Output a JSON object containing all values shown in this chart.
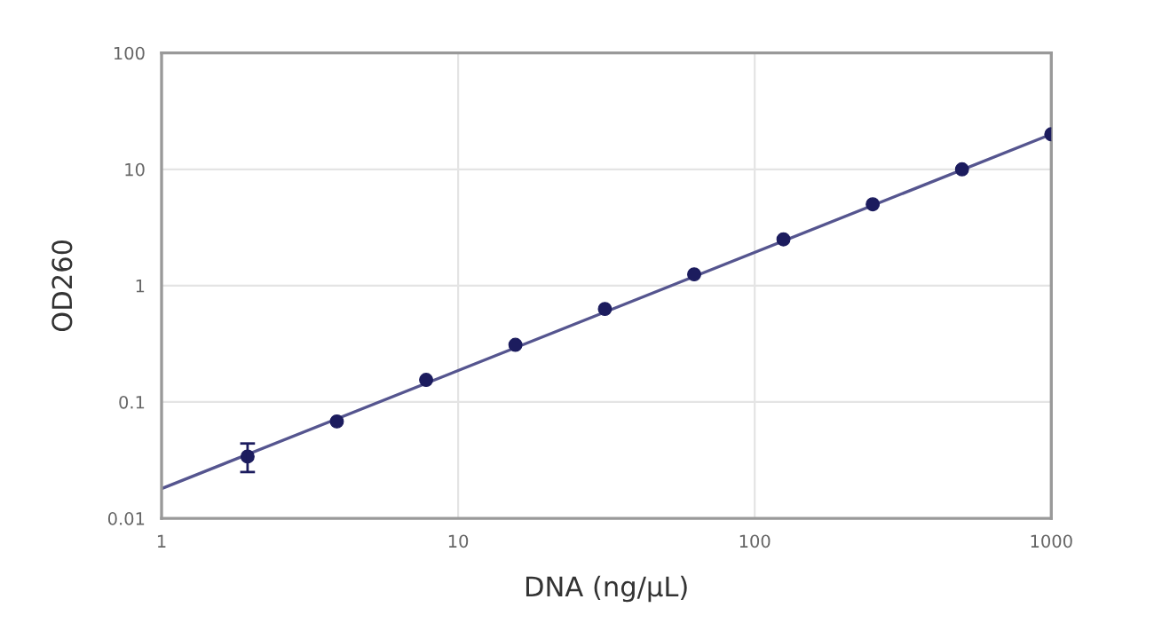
{
  "chart_data": {
    "type": "scatter",
    "xlabel": "DNA (ng/µL)",
    "ylabel": "OD260",
    "log": "xy",
    "grid": true,
    "marker": "circle",
    "xlim": [
      1,
      1000
    ],
    "xticks": [
      1,
      10,
      100,
      1000
    ],
    "ylim": [
      0.01,
      100
    ],
    "yticks": [
      0.01,
      0.1,
      1,
      10,
      100
    ],
    "series": [
      {
        "type": "line",
        "color": "#55558f",
        "x": [
          1,
          1000
        ],
        "values": [
          0.018,
          20
        ],
        "marker": "none"
      },
      {
        "color": "#1c1c5e",
        "x": [
          1.95,
          3.9,
          7.8,
          15.6,
          31.25,
          62.5,
          125,
          250,
          500,
          1000
        ],
        "values": [
          0.034,
          0.068,
          0.155,
          0.31,
          0.63,
          1.25,
          2.5,
          5,
          10,
          20
        ],
        "errors": [
          [
            0.025,
            0.044
          ],
          null,
          null,
          null,
          null,
          null,
          null,
          null,
          null,
          null
        ]
      }
    ]
  }
}
